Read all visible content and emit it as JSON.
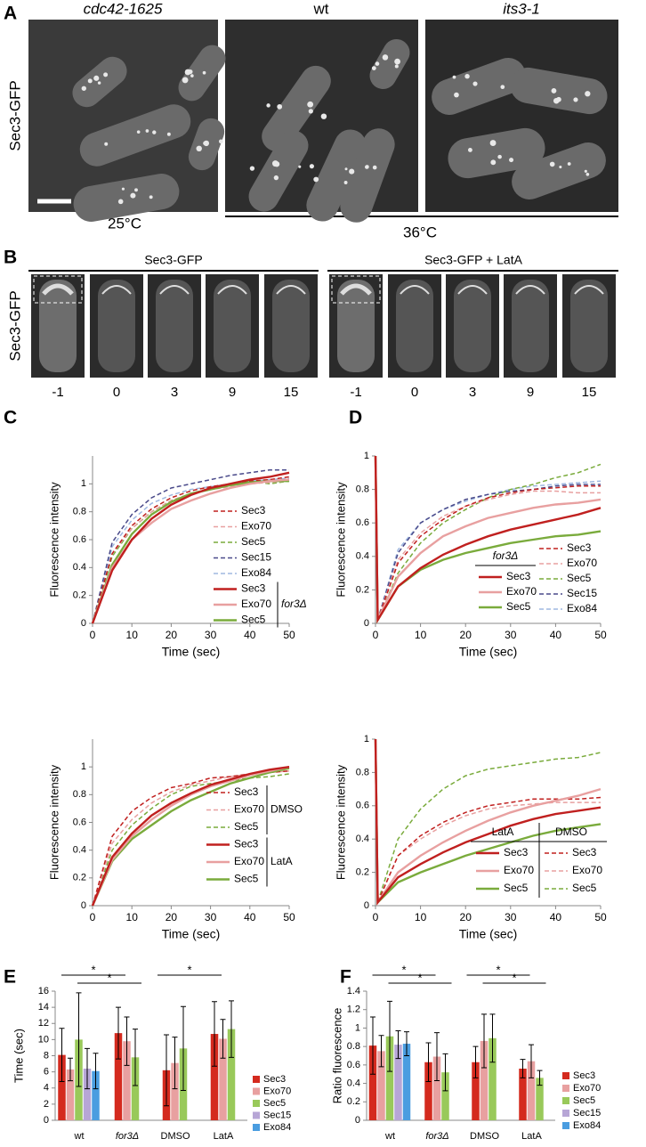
{
  "panel_a": {
    "label": "A",
    "row_label": "Sec3-GFP",
    "strains": [
      "cdc42-1625",
      "wt",
      "its3-1"
    ],
    "temperatures": [
      "25°C",
      "36°C"
    ]
  },
  "panel_b": {
    "label": "B",
    "row_label": "Sec3-GFP",
    "conditions": [
      "Sec3-GFP",
      "Sec3-GFP + LatA"
    ],
    "timepoints": [
      [
        -1,
        0,
        3,
        9,
        15
      ],
      [
        -1,
        0,
        3,
        9,
        15
      ]
    ]
  },
  "chart_data": [
    {
      "type": "line",
      "panel": "C",
      "xlabel": "Time (sec)",
      "ylabel": "Fluorescence intensity",
      "x": [
        0,
        5,
        10,
        15,
        20,
        25,
        30,
        35,
        40,
        45,
        50
      ],
      "xlim": [
        0,
        50
      ],
      "xticks": [
        0,
        10,
        20,
        30,
        40,
        50
      ],
      "ylim": [
        0,
        1.2
      ],
      "yticks": [
        0,
        0.2,
        0.4,
        0.6,
        0.8,
        1
      ],
      "series": [
        {
          "name": "Sec3",
          "color": "#c0201f",
          "style": "dashed",
          "values": [
            0,
            0.5,
            0.7,
            0.82,
            0.9,
            0.95,
            0.98,
            1.0,
            1.02,
            1.03,
            1.05
          ]
        },
        {
          "name": "Exo70",
          "color": "#e8a0a0",
          "style": "dashed",
          "values": [
            0,
            0.5,
            0.68,
            0.8,
            0.88,
            0.93,
            0.96,
            0.98,
            1.0,
            1.01,
            1.02
          ]
        },
        {
          "name": "Sec5",
          "color": "#7aab3c",
          "style": "dashed",
          "values": [
            0,
            0.48,
            0.68,
            0.8,
            0.88,
            0.93,
            0.97,
            1.0,
            1.02,
            1.0,
            1.02
          ]
        },
        {
          "name": "Sec15",
          "color": "#4a4a8a",
          "style": "dashed",
          "values": [
            0,
            0.58,
            0.78,
            0.9,
            0.97,
            1.0,
            1.03,
            1.06,
            1.08,
            1.1,
            1.1
          ]
        },
        {
          "name": "Exo84",
          "color": "#9fb8e0",
          "style": "dashed",
          "values": [
            0,
            0.55,
            0.74,
            0.86,
            0.92,
            0.96,
            0.98,
            1.0,
            1.02,
            1.03,
            1.04
          ]
        },
        {
          "name": "Sec3",
          "color": "#c0201f",
          "style": "solid",
          "group": "for3Δ",
          "values": [
            0,
            0.38,
            0.6,
            0.75,
            0.85,
            0.92,
            0.97,
            1.0,
            1.03,
            1.05,
            1.08
          ]
        },
        {
          "name": "Exo70",
          "color": "#e8a0a0",
          "style": "solid",
          "group": "for3Δ",
          "values": [
            0,
            0.4,
            0.6,
            0.72,
            0.82,
            0.88,
            0.93,
            0.97,
            1.0,
            1.02,
            1.03
          ]
        },
        {
          "name": "Sec5",
          "color": "#7aab3c",
          "style": "solid",
          "group": "for3Δ",
          "values": [
            0,
            0.42,
            0.64,
            0.78,
            0.87,
            0.93,
            0.96,
            0.99,
            1.01,
            1.02,
            1.02
          ]
        }
      ]
    },
    {
      "type": "line",
      "xlabel": "Time (sec)",
      "ylabel": "Fluorescence intensity",
      "x": [
        0,
        5,
        10,
        15,
        20,
        25,
        30,
        35,
        40,
        45,
        50
      ],
      "xlim": [
        0,
        50
      ],
      "xticks": [
        0,
        10,
        20,
        30,
        40,
        50
      ],
      "ylim": [
        0,
        1.2
      ],
      "yticks": [
        0,
        0.2,
        0.4,
        0.6,
        0.8,
        1
      ],
      "series": [
        {
          "name": "Sec3",
          "color": "#c0201f",
          "style": "dashed",
          "group": "DMSO",
          "values": [
            0,
            0.5,
            0.68,
            0.78,
            0.85,
            0.88,
            0.92,
            0.93,
            0.95,
            0.96,
            0.97
          ]
        },
        {
          "name": "Exo70",
          "color": "#e8a0a0",
          "style": "dashed",
          "group": "DMSO",
          "values": [
            0,
            0.45,
            0.62,
            0.74,
            0.82,
            0.87,
            0.9,
            0.93,
            0.95,
            0.96,
            0.97
          ]
        },
        {
          "name": "Sec5",
          "color": "#7aab3c",
          "style": "dashed",
          "group": "DMSO",
          "values": [
            0,
            0.4,
            0.58,
            0.7,
            0.8,
            0.86,
            0.88,
            0.9,
            0.92,
            0.93,
            0.95
          ]
        },
        {
          "name": "Sec3",
          "color": "#c0201f",
          "style": "solid",
          "group": "LatA",
          "values": [
            0,
            0.35,
            0.52,
            0.65,
            0.74,
            0.81,
            0.87,
            0.91,
            0.95,
            0.98,
            1.0
          ]
        },
        {
          "name": "Exo70",
          "color": "#e8a0a0",
          "style": "solid",
          "group": "LatA",
          "values": [
            0,
            0.33,
            0.5,
            0.62,
            0.72,
            0.8,
            0.86,
            0.9,
            0.94,
            0.97,
            1.0
          ]
        },
        {
          "name": "Sec5",
          "color": "#7aab3c",
          "style": "solid",
          "group": "LatA",
          "values": [
            0,
            0.32,
            0.48,
            0.58,
            0.68,
            0.76,
            0.82,
            0.88,
            0.92,
            0.96,
            0.99
          ]
        }
      ]
    },
    {
      "type": "line",
      "panel": "D",
      "xlabel": "Time (sec)",
      "ylabel": "Fluorescence intensity",
      "x": [
        0,
        0.5,
        5,
        10,
        15,
        20,
        25,
        30,
        35,
        40,
        45,
        50
      ],
      "xlim": [
        0,
        50
      ],
      "xticks": [
        0,
        10,
        20,
        30,
        40,
        50
      ],
      "ylim": [
        0,
        1
      ],
      "yticks": [
        0,
        0.2,
        0.4,
        0.6,
        0.8,
        1
      ],
      "series": [
        {
          "name": "Sec3",
          "color": "#c0201f",
          "style": "solid",
          "group": "for3Δ",
          "values": [
            1,
            0.02,
            0.22,
            0.33,
            0.41,
            0.47,
            0.52,
            0.56,
            0.59,
            0.62,
            0.65,
            0.69
          ]
        },
        {
          "name": "Exo70",
          "color": "#e8a0a0",
          "style": "solid",
          "group": "for3Δ",
          "values": [
            1,
            0.02,
            0.28,
            0.42,
            0.52,
            0.58,
            0.63,
            0.66,
            0.69,
            0.71,
            0.72,
            0.74
          ]
        },
        {
          "name": "Sec5",
          "color": "#7aab3c",
          "style": "solid",
          "group": "for3Δ",
          "values": [
            1,
            0.02,
            0.22,
            0.32,
            0.38,
            0.42,
            0.45,
            0.48,
            0.5,
            0.52,
            0.53,
            0.55
          ]
        },
        {
          "name": "Sec3",
          "color": "#c0201f",
          "style": "dashed",
          "values": [
            1,
            0.02,
            0.36,
            0.52,
            0.62,
            0.7,
            0.75,
            0.78,
            0.8,
            0.81,
            0.82,
            0.82
          ]
        },
        {
          "name": "Exo70",
          "color": "#e8a0a0",
          "style": "dashed",
          "values": [
            1,
            0.02,
            0.38,
            0.54,
            0.64,
            0.7,
            0.74,
            0.77,
            0.79,
            0.79,
            0.78,
            0.78
          ]
        },
        {
          "name": "Sec5",
          "color": "#7aab3c",
          "style": "dashed",
          "values": [
            1,
            0.02,
            0.3,
            0.48,
            0.6,
            0.68,
            0.75,
            0.8,
            0.83,
            0.87,
            0.9,
            0.95
          ]
        },
        {
          "name": "Sec15",
          "color": "#4a4a8a",
          "style": "dashed",
          "values": [
            1,
            0.02,
            0.42,
            0.6,
            0.68,
            0.74,
            0.77,
            0.79,
            0.8,
            0.82,
            0.83,
            0.83
          ]
        },
        {
          "name": "Exo84",
          "color": "#9fb8e0",
          "style": "dashed",
          "values": [
            1,
            0.02,
            0.44,
            0.6,
            0.68,
            0.73,
            0.77,
            0.8,
            0.82,
            0.83,
            0.84,
            0.85
          ]
        }
      ]
    },
    {
      "type": "line",
      "xlabel": "Time (sec)",
      "ylabel": "Fluorescence intensity",
      "x": [
        0,
        0.5,
        5,
        10,
        15,
        20,
        25,
        30,
        35,
        40,
        45,
        50
      ],
      "xlim": [
        0,
        50
      ],
      "xticks": [
        0,
        10,
        20,
        30,
        40,
        50
      ],
      "ylim": [
        0,
        1
      ],
      "yticks": [
        0,
        0.2,
        0.4,
        0.6,
        0.8,
        1
      ],
      "series": [
        {
          "name": "Sec3",
          "color": "#c0201f",
          "style": "solid",
          "group": "LatA",
          "values": [
            1,
            0.02,
            0.17,
            0.25,
            0.32,
            0.38,
            0.43,
            0.48,
            0.52,
            0.55,
            0.57,
            0.59
          ]
        },
        {
          "name": "Exo70",
          "color": "#e8a0a0",
          "style": "solid",
          "group": "LatA",
          "values": [
            1,
            0.02,
            0.2,
            0.3,
            0.38,
            0.45,
            0.51,
            0.56,
            0.6,
            0.63,
            0.66,
            0.7
          ]
        },
        {
          "name": "Sec5",
          "color": "#7aab3c",
          "style": "solid",
          "group": "LatA",
          "values": [
            1,
            0.02,
            0.14,
            0.2,
            0.25,
            0.3,
            0.34,
            0.38,
            0.42,
            0.45,
            0.47,
            0.49
          ]
        },
        {
          "name": "Sec3",
          "color": "#c0201f",
          "style": "dashed",
          "group": "DMSO",
          "values": [
            1,
            0.02,
            0.3,
            0.42,
            0.5,
            0.56,
            0.6,
            0.62,
            0.64,
            0.64,
            0.64,
            0.65
          ]
        },
        {
          "name": "Exo70",
          "color": "#e8a0a0",
          "style": "dashed",
          "group": "DMSO",
          "values": [
            1,
            0.02,
            0.3,
            0.4,
            0.48,
            0.54,
            0.58,
            0.6,
            0.61,
            0.62,
            0.62,
            0.62
          ]
        },
        {
          "name": "Sec5",
          "color": "#7aab3c",
          "style": "dashed",
          "group": "DMSO",
          "values": [
            1,
            0.02,
            0.4,
            0.58,
            0.7,
            0.78,
            0.82,
            0.84,
            0.86,
            0.88,
            0.89,
            0.92
          ]
        }
      ]
    },
    {
      "type": "bar",
      "panel": "E",
      "ylabel": "Time (sec)",
      "categories": [
        "wt",
        "for3Δ",
        "DMSO",
        "LatA"
      ],
      "ylim": [
        0,
        16
      ],
      "yticks": [
        0,
        2,
        4,
        6,
        8,
        10,
        12,
        14,
        16
      ],
      "series": [
        {
          "name": "Sec3",
          "color": "#d42a1e",
          "values": [
            8.1,
            10.8,
            6.2,
            10.7
          ],
          "errors": [
            3.3,
            3.2,
            4.4,
            4.0
          ]
        },
        {
          "name": "Exo70",
          "color": "#e8a0a0",
          "values": [
            6.3,
            9.8,
            7.1,
            10.1
          ],
          "errors": [
            1.4,
            3.0,
            3.2,
            2.4
          ]
        },
        {
          "name": "Sec5",
          "color": "#99c95a",
          "values": [
            10,
            7.8,
            8.9,
            11.3
          ],
          "errors": [
            5.8,
            3.5,
            5.2,
            3.5
          ]
        },
        {
          "name": "Sec15",
          "color": "#b7a6d6",
          "values": [
            6.4,
            null,
            null,
            null
          ],
          "errors": [
            2.5,
            null,
            null,
            null
          ]
        },
        {
          "name": "Exo84",
          "color": "#4a9de0",
          "values": [
            6.1,
            null,
            null,
            null
          ],
          "errors": [
            2.2,
            null,
            null,
            null
          ]
        }
      ],
      "significance": [
        {
          "label": "*",
          "from": 0,
          "to": 1
        },
        {
          "label": "*",
          "from": 0,
          "to": 1
        },
        {
          "label": "*",
          "from": 2,
          "to": 3
        }
      ]
    },
    {
      "type": "bar",
      "panel": "F",
      "ylabel": "Ratio fluorescence",
      "categories": [
        "wt",
        "for3Δ",
        "DMSO",
        "LatA"
      ],
      "ylim": [
        0,
        1.4
      ],
      "yticks": [
        0,
        0.2,
        0.4,
        0.6,
        0.8,
        1,
        1.2,
        1.4
      ],
      "series": [
        {
          "name": "Sec3",
          "color": "#d42a1e",
          "values": [
            0.81,
            0.63,
            0.63,
            0.56
          ],
          "errors": [
            0.31,
            0.21,
            0.17,
            0.1
          ]
        },
        {
          "name": "Exo70",
          "color": "#e8a0a0",
          "values": [
            0.75,
            0.69,
            0.86,
            0.64
          ],
          "errors": [
            0.17,
            0.26,
            0.29,
            0.18
          ]
        },
        {
          "name": "Sec5",
          "color": "#99c95a",
          "values": [
            0.91,
            0.52,
            0.89,
            0.46
          ],
          "errors": [
            0.38,
            0.2,
            0.26,
            0.08
          ]
        },
        {
          "name": "Sec15",
          "color": "#b7a6d6",
          "values": [
            0.82,
            null,
            null,
            null
          ],
          "errors": [
            0.15,
            null,
            null,
            null
          ]
        },
        {
          "name": "Exo84",
          "color": "#4a9de0",
          "values": [
            0.83,
            null,
            null,
            null
          ],
          "errors": [
            0.13,
            null,
            null,
            null
          ]
        }
      ],
      "significance": [
        {
          "label": "*",
          "from": 0,
          "to": 1
        },
        {
          "label": "*",
          "from": 0,
          "to": 1
        },
        {
          "label": "*",
          "from": 2,
          "to": 3
        },
        {
          "label": "*",
          "from": 2,
          "to": 3
        }
      ]
    }
  ]
}
